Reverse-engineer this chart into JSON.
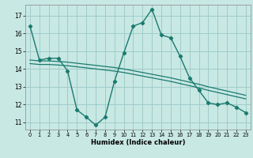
{
  "xlabel": "Humidex (Indice chaleur)",
  "xlim": [
    -0.5,
    23.5
  ],
  "ylim": [
    10.6,
    17.6
  ],
  "yticks": [
    11,
    12,
    13,
    14,
    15,
    16,
    17
  ],
  "xticks": [
    0,
    1,
    2,
    3,
    4,
    5,
    6,
    7,
    8,
    9,
    10,
    11,
    12,
    13,
    14,
    15,
    16,
    17,
    18,
    19,
    20,
    21,
    22,
    23
  ],
  "bg_color": "#c8e8e4",
  "grid_color": "#a0ccca",
  "line_color": "#1a7a6e",
  "series1_x": [
    0,
    1,
    2,
    3,
    4,
    5,
    6,
    7,
    8,
    9,
    10,
    11,
    12,
    13,
    14,
    15,
    16,
    17,
    18,
    19,
    20,
    21,
    22,
    23
  ],
  "series1_y": [
    16.4,
    14.5,
    14.6,
    14.6,
    13.9,
    11.7,
    11.3,
    10.85,
    11.3,
    13.3,
    14.9,
    16.4,
    16.6,
    17.35,
    15.9,
    15.75,
    14.7,
    13.5,
    12.8,
    12.1,
    12.0,
    12.1,
    11.85,
    11.55
  ],
  "series2_x": [
    0,
    1,
    2,
    3,
    4,
    5,
    6,
    7,
    8,
    9,
    10,
    11,
    12,
    13,
    14,
    15,
    16,
    17,
    18,
    19,
    20,
    21,
    22,
    23
  ],
  "series2_y": [
    14.5,
    14.45,
    14.45,
    14.42,
    14.38,
    14.32,
    14.26,
    14.2,
    14.14,
    14.08,
    14.0,
    13.9,
    13.8,
    13.7,
    13.6,
    13.5,
    13.38,
    13.26,
    13.14,
    13.0,
    12.88,
    12.76,
    12.64,
    12.52
  ],
  "series3_x": [
    0,
    1,
    2,
    3,
    4,
    5,
    6,
    7,
    8,
    9,
    10,
    11,
    12,
    13,
    14,
    15,
    16,
    17,
    18,
    19,
    20,
    21,
    22,
    23
  ],
  "series3_y": [
    14.3,
    14.25,
    14.25,
    14.22,
    14.18,
    14.12,
    14.06,
    14.0,
    13.94,
    13.88,
    13.8,
    13.7,
    13.6,
    13.5,
    13.4,
    13.3,
    13.18,
    13.06,
    12.94,
    12.8,
    12.68,
    12.56,
    12.44,
    12.32
  ]
}
